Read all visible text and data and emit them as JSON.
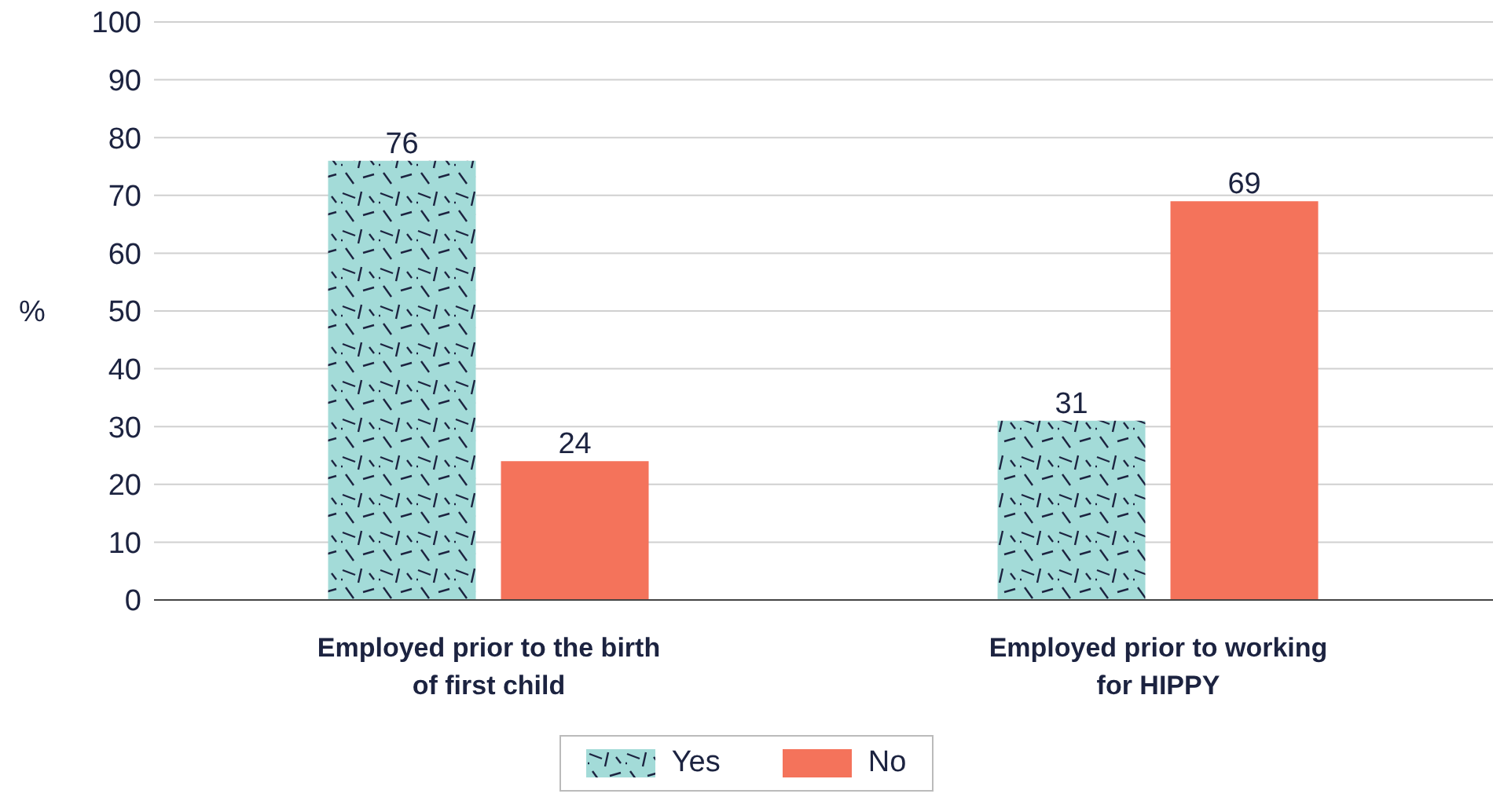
{
  "chart_data": {
    "type": "bar",
    "ylabel": "%",
    "categories": [
      "Employed prior to the birth of first child",
      "Employed prior to working for HIPPY"
    ],
    "series": [
      {
        "name": "Yes",
        "color": "#a3dbd8",
        "values": [
          76,
          31
        ]
      },
      {
        "name": "No",
        "color": "#f4735b",
        "values": [
          24,
          69
        ]
      }
    ],
    "ylim": [
      0,
      100
    ],
    "yticks": [
      0,
      10,
      20,
      30,
      40,
      50,
      60,
      70,
      80,
      90,
      100
    ],
    "grid": "y",
    "legend": "bottom",
    "data_labels": true
  }
}
